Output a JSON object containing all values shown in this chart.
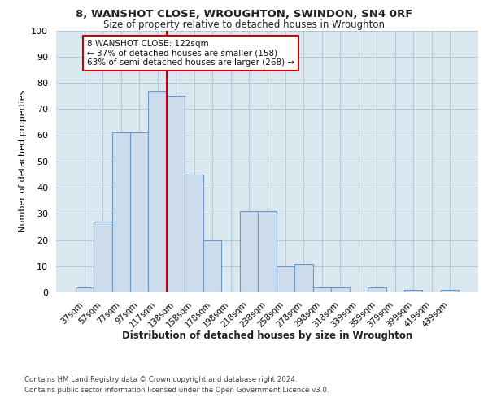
{
  "title": "8, WANSHOT CLOSE, WROUGHTON, SWINDON, SN4 0RF",
  "subtitle": "Size of property relative to detached houses in Wroughton",
  "xlabel": "Distribution of detached houses by size in Wroughton",
  "ylabel": "Number of detached properties",
  "bins": [
    "37sqm",
    "57sqm",
    "77sqm",
    "97sqm",
    "117sqm",
    "138sqm",
    "158sqm",
    "178sqm",
    "198sqm",
    "218sqm",
    "238sqm",
    "258sqm",
    "278sqm",
    "298sqm",
    "318sqm",
    "339sqm",
    "359sqm",
    "379sqm",
    "399sqm",
    "419sqm",
    "439sqm"
  ],
  "bar_values": [
    2,
    27,
    61,
    61,
    77,
    75,
    45,
    20,
    0,
    31,
    31,
    10,
    11,
    2,
    2,
    0,
    2,
    0,
    1,
    0,
    1
  ],
  "bar_color": "#ccdcec",
  "bar_edge_color": "#6699cc",
  "vline_color": "#cc0000",
  "vline_pos": 4.5,
  "annotation_text": "8 WANSHOT CLOSE: 122sqm\n← 37% of detached houses are smaller (158)\n63% of semi-detached houses are larger (268) →",
  "annotation_box_color": "#ffffff",
  "annotation_box_edge": "#cc0000",
  "ylim": [
    0,
    100
  ],
  "yticks": [
    0,
    10,
    20,
    30,
    40,
    50,
    60,
    70,
    80,
    90,
    100
  ],
  "footer1": "Contains HM Land Registry data © Crown copyright and database right 2024.",
  "footer2": "Contains public sector information licensed under the Open Government Licence v3.0.",
  "plot_bg_color": "#dce8f0",
  "grid_color": "#b0c8d8"
}
